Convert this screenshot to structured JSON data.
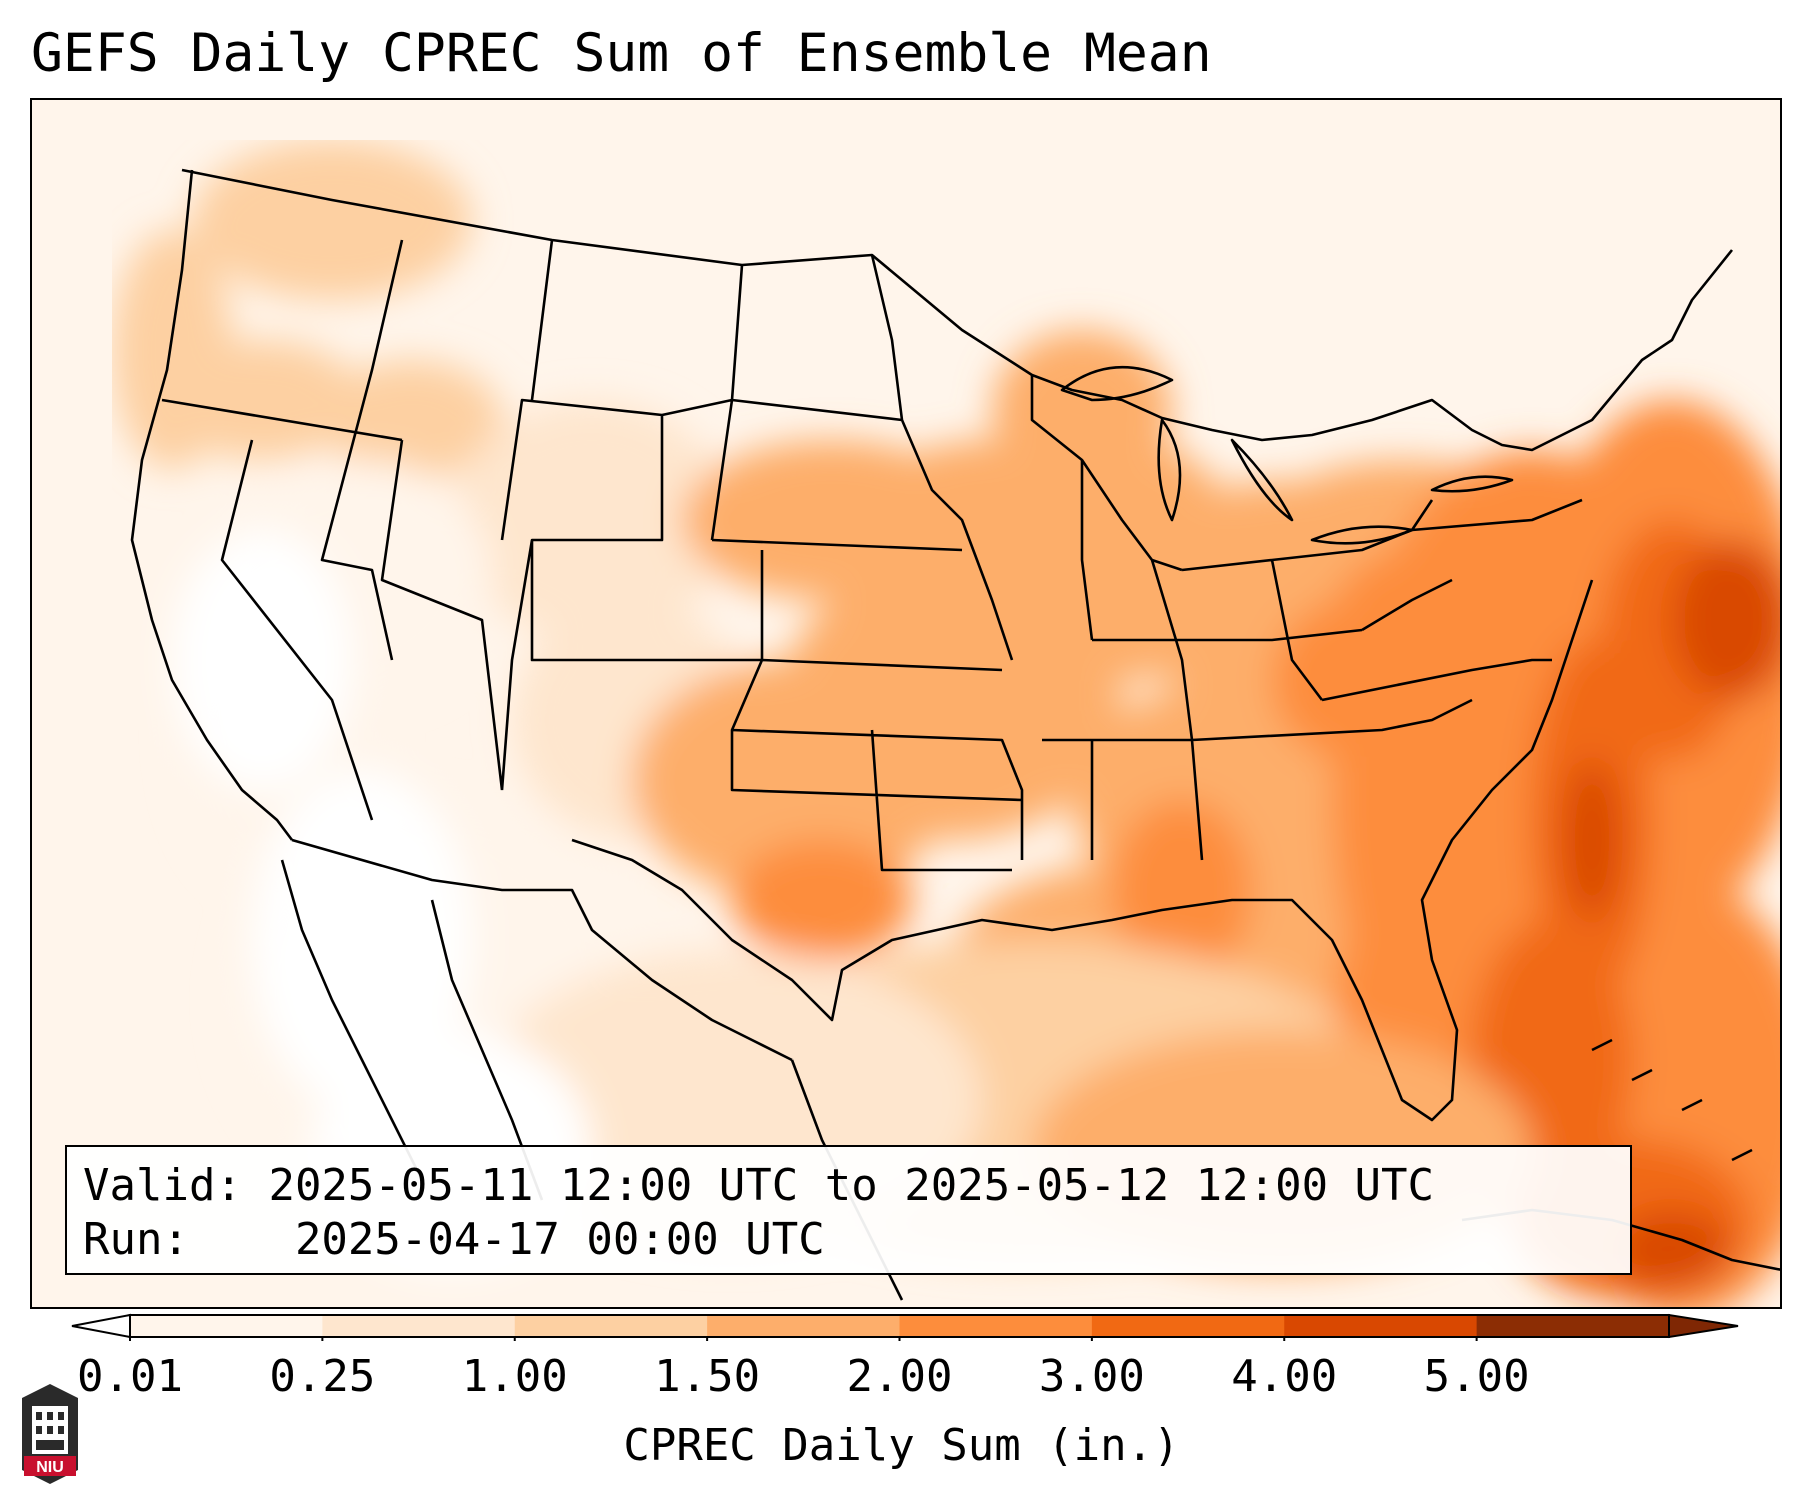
{
  "title": "GEFS Daily CPREC Sum of Ensemble Mean",
  "info": {
    "valid_label": "Valid:",
    "valid_value": "2025-05-11 12:00 UTC to 2025-05-12 12:00 UTC",
    "run_label": "Run:",
    "run_value": "2025-04-17 00:00 UTC"
  },
  "colorbar": {
    "label": "CPREC Daily Sum (in.)",
    "ticks": [
      "0.01",
      "0.25",
      "1.00",
      "1.50",
      "2.00",
      "3.00",
      "4.00",
      "5.00"
    ],
    "colors": [
      "#fff5eb",
      "#fee6ce",
      "#fdd0a2",
      "#fdae6b",
      "#fd8d3c",
      "#f16913",
      "#d94801",
      "#8c2d04"
    ],
    "under_color": "#ffffff",
    "over_color": "#7f2704"
  },
  "logo": {
    "text": "NIU",
    "icon": "university-tower-icon",
    "accent": "#c8102e"
  },
  "map": {
    "region": "Contiguous United States, southern Canada, northern Mexico, Gulf of Mexico, western Atlantic",
    "field": "CPREC daily sum, ensemble mean (in.)"
  }
}
